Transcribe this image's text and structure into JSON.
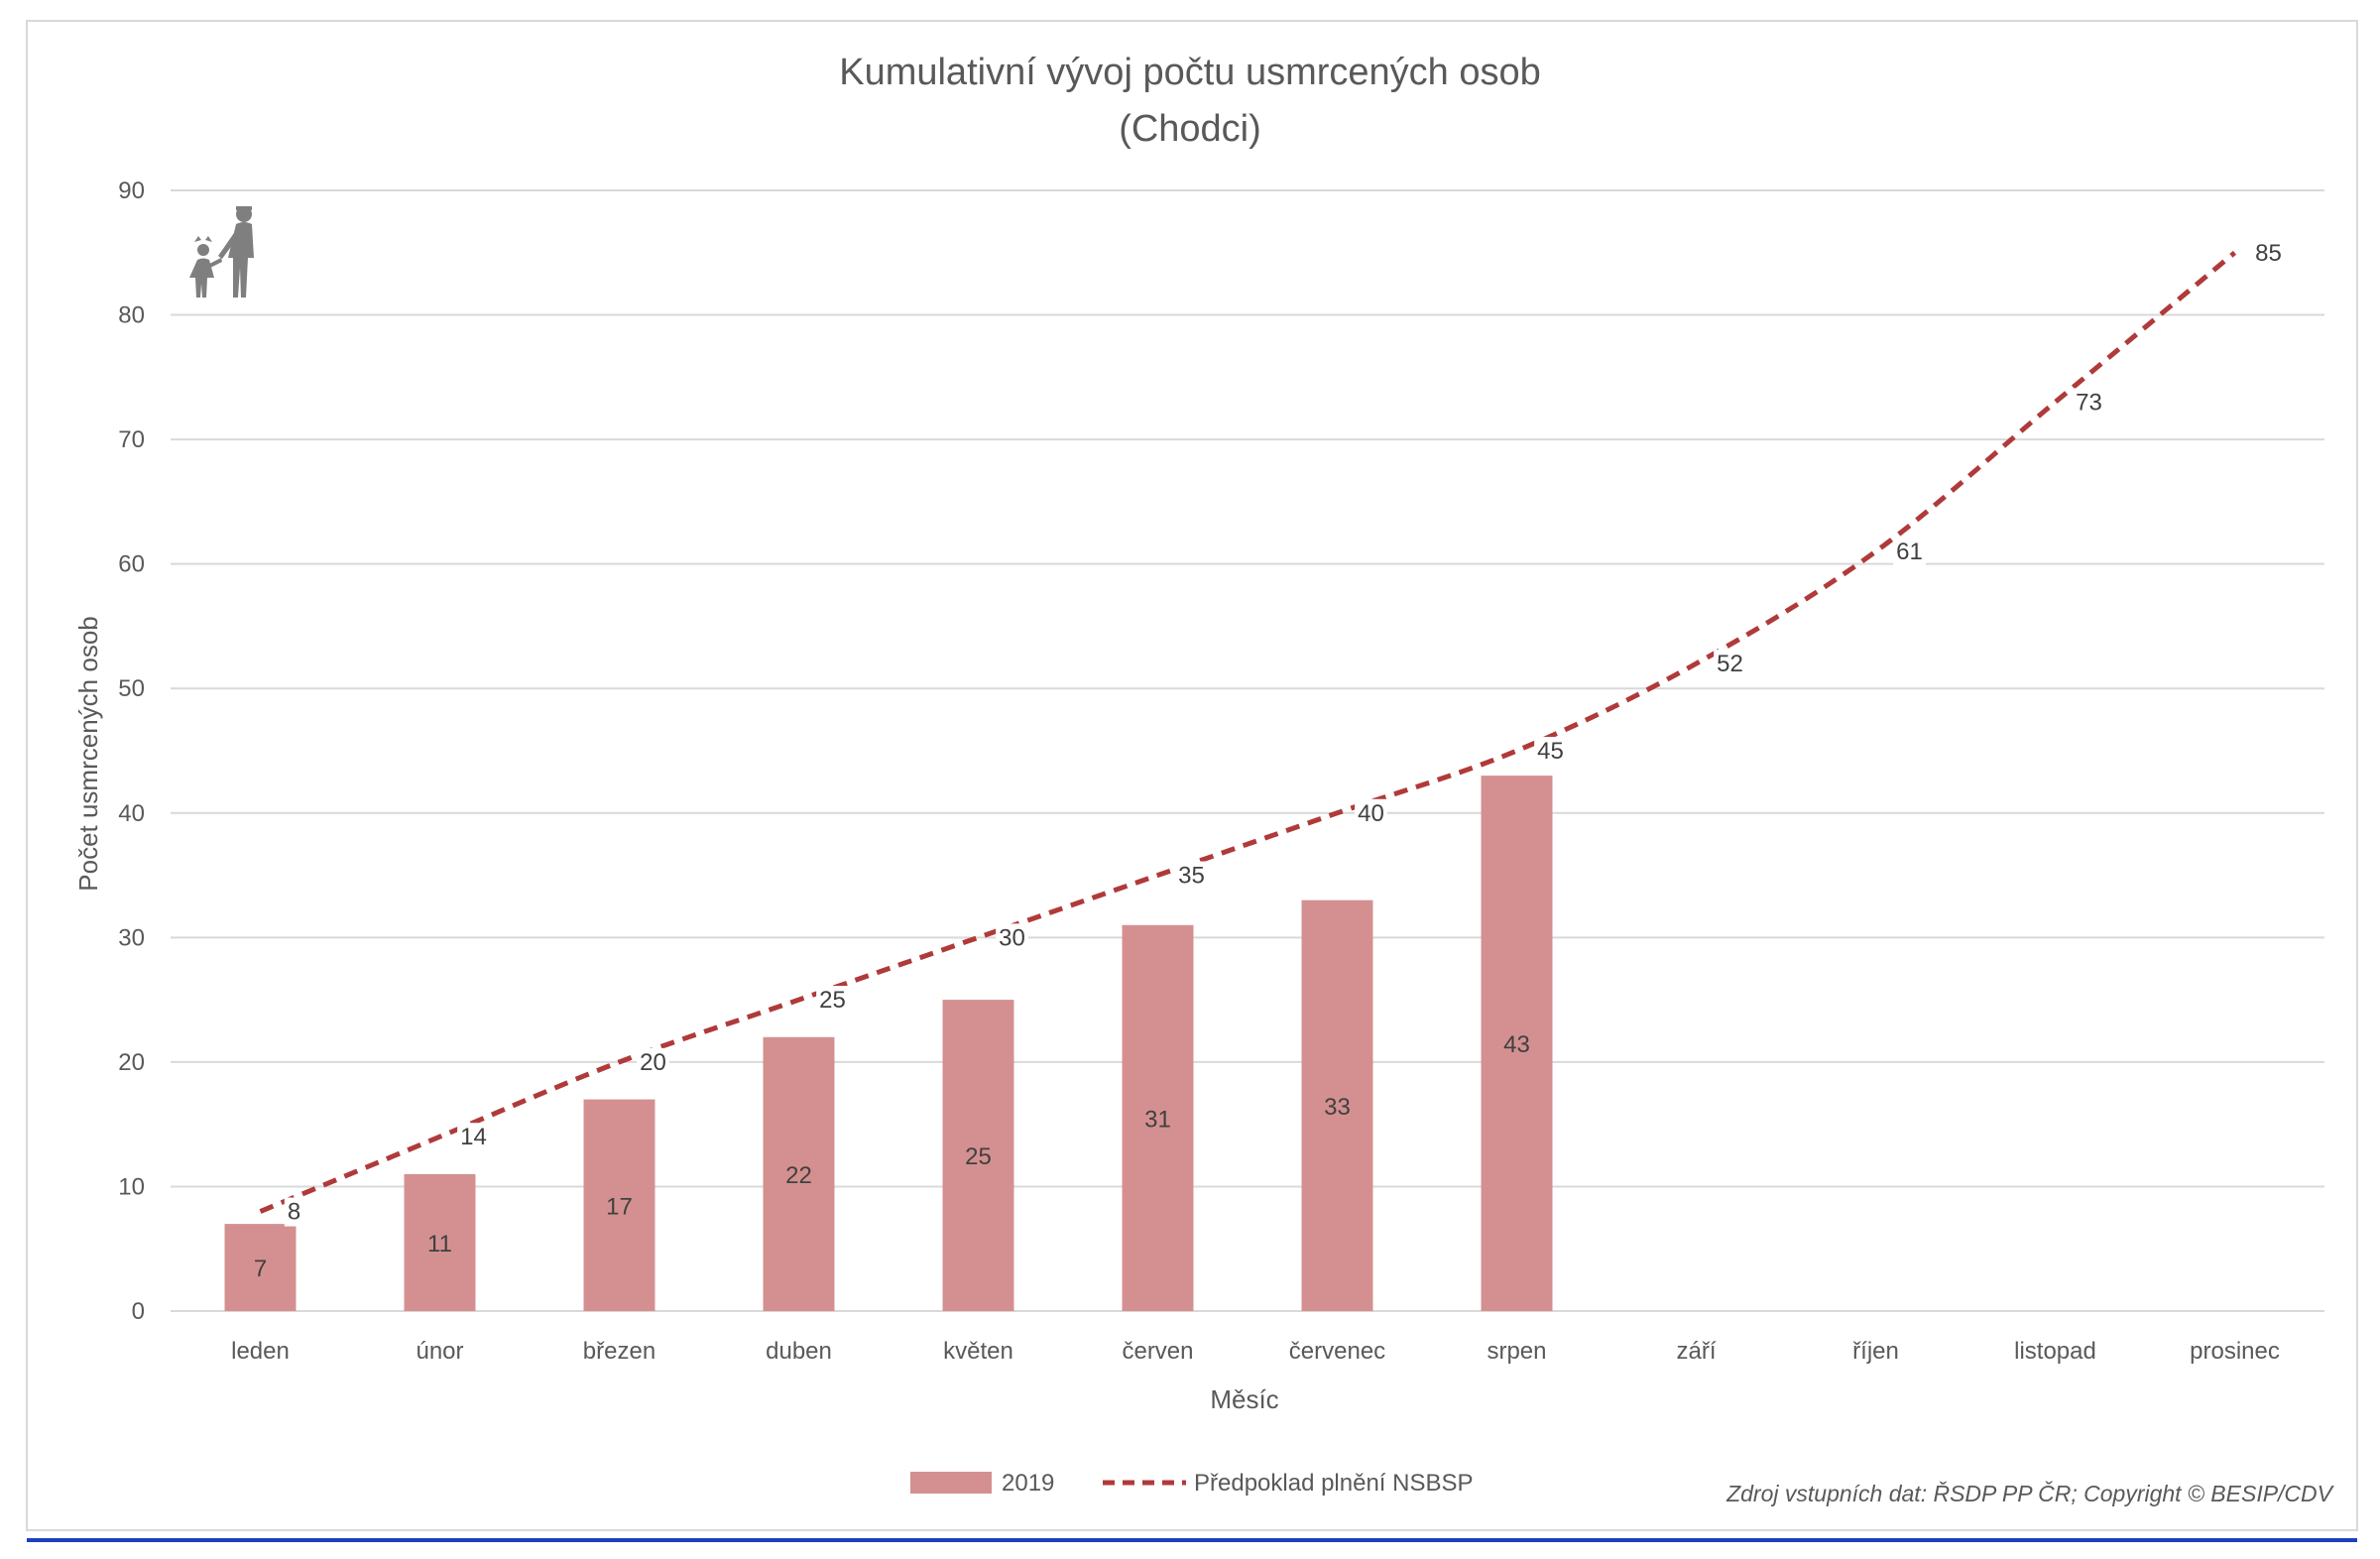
{
  "chart_data": {
    "type": "bar",
    "title": "Kumulativní vývoj počtu usmrcených osob",
    "subtitle": "(Chodci)",
    "xlabel": "Měsíc",
    "ylabel": "Počet usmrcených osob",
    "ylim": [
      0,
      90
    ],
    "yticks": [
      0,
      10,
      20,
      30,
      40,
      50,
      60,
      70,
      80,
      90
    ],
    "grid": true,
    "legend_position": "bottom",
    "categories": [
      "leden",
      "únor",
      "březen",
      "duben",
      "květen",
      "červen",
      "červenec",
      "srpen",
      "září",
      "říjen",
      "listopad",
      "prosinec"
    ],
    "series": [
      {
        "name": "2019",
        "type": "bar",
        "color": "#d49090",
        "values": [
          7,
          11,
          17,
          22,
          25,
          31,
          33,
          43,
          null,
          null,
          null,
          null
        ]
      },
      {
        "name": "Předpoklad plnění NSBSP",
        "type": "line",
        "style": "dashed",
        "color": "#b03a3a",
        "values": [
          8,
          14,
          20,
          25,
          30,
          35,
          40,
          45,
          52,
          61,
          73,
          85
        ]
      }
    ],
    "source": "Zdroj vstupních dat: ŘSDP PP ČR; Copyright © BESIP/CDV",
    "icon": "pedestrians-icon"
  },
  "colors": {
    "grid": "#d9d9d9",
    "text": "#595959",
    "bottom_rule": "#1f3fbf"
  }
}
